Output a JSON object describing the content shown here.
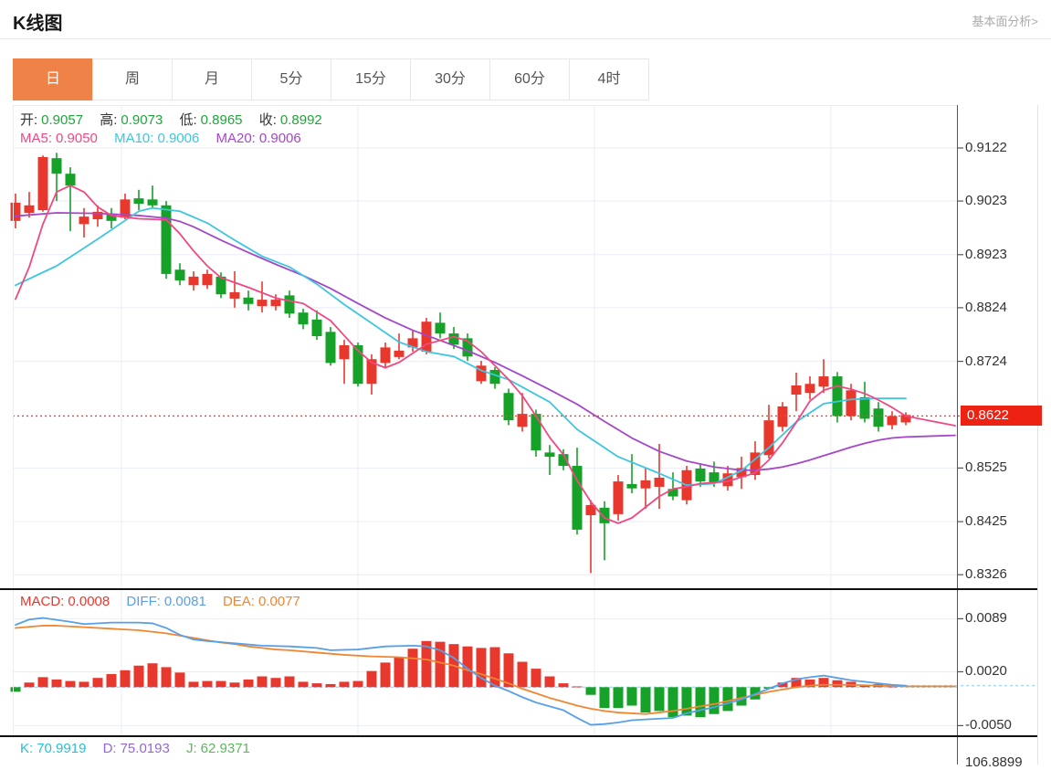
{
  "header": {
    "title": "K线图",
    "link_label": "基本面分析>"
  },
  "tabs": {
    "items": [
      "日",
      "周",
      "月",
      "5分",
      "15分",
      "30分",
      "60分",
      "4时"
    ],
    "selected": "日"
  },
  "main_legend": {
    "open_label": "开:",
    "open_value": "0.9057",
    "high_label": "高:",
    "high_value": "0.9073",
    "low_label": "低:",
    "low_value": "0.8965",
    "close_label": "收:",
    "close_value": "0.8992"
  },
  "ma_legend": {
    "ma5_label": "MA5:",
    "ma5_value": "0.9050",
    "ma10_label": "MA10:",
    "ma10_value": "0.9006",
    "ma20_label": "MA20:",
    "ma20_value": "0.9006"
  },
  "macd_legend": {
    "macd_label": "MACD:",
    "macd_value": "0.0008",
    "diff_label": "DIFF:",
    "diff_value": "0.0081",
    "dea_label": "DEA:",
    "dea_value": "0.0077"
  },
  "kdj_legend": {
    "k_label": "K:",
    "k_value": "70.9919",
    "d_label": "D:",
    "d_value": "75.0193",
    "j_label": "J:",
    "j_value": "62.9371"
  },
  "colors": {
    "tab_selected_bg": "#ef8347",
    "up_red": "#e8382e",
    "down_green": "#16a228",
    "ma5_pink": "#f04883",
    "ma10_cyan": "#3ec6e0",
    "ma20_purple": "#a646c8",
    "diff_blue": "#57a0e8",
    "dea_orange": "#f08632",
    "value_green": "#21a53c",
    "badge_red": "#ee2213",
    "dotted_red": "#f04338",
    "k_cyan": "#25c1d5",
    "d_purple": "#9268d8",
    "j_green": "#5cb85c",
    "grid": "#e9edf6",
    "zero_dash_blue": "#aed6ec"
  },
  "chart_data": {
    "type": "candlestick",
    "panels": [
      "price+MA",
      "MACD",
      "KDJ(partially cut)"
    ],
    "price_axis": {
      "tick_labels": [
        "0.9122",
        "0.9023",
        "0.8923",
        "0.8824",
        "0.8724",
        "0.8525",
        "0.8425",
        "0.8326"
      ],
      "tick_values": [
        0.9122,
        0.9023,
        0.8923,
        0.8824,
        0.8724,
        0.8525,
        0.8425,
        0.8326
      ],
      "current_price_label": "0.8622",
      "current_price": 0.8622
    },
    "macd_axis": {
      "tick_labels": [
        "0.0089",
        "0.0020",
        "-0.0050"
      ],
      "tick_values": [
        0.0089,
        0.002,
        -0.005
      ]
    },
    "kdj_axis_partial_label": "106.8899",
    "candles_ohlc": [
      [
        0.8986,
        0.9037,
        0.8972,
        0.902
      ],
      [
        0.9001,
        0.904,
        0.8992,
        0.9015
      ],
      [
        0.9006,
        0.9108,
        0.9003,
        0.9105
      ],
      [
        0.9103,
        0.9113,
        0.9023,
        0.9074
      ],
      [
        0.9074,
        0.9086,
        0.8967,
        0.9052
      ],
      [
        0.898,
        0.901,
        0.8955,
        0.8994
      ],
      [
        0.8989,
        0.9015,
        0.8975,
        0.9003
      ],
      [
        0.8998,
        0.901,
        0.8972,
        0.8986
      ],
      [
        0.8992,
        0.9037,
        0.8989,
        0.9026
      ],
      [
        0.9028,
        0.9044,
        0.9006,
        0.9018
      ],
      [
        0.9026,
        0.9052,
        0.901,
        0.9015
      ],
      [
        0.9015,
        0.9023,
        0.8878,
        0.8887
      ],
      [
        0.8895,
        0.8907,
        0.8866,
        0.8875
      ],
      [
        0.8866,
        0.8892,
        0.8856,
        0.8882
      ],
      [
        0.8866,
        0.8895,
        0.8859,
        0.8887
      ],
      [
        0.8882,
        0.889,
        0.8842,
        0.8849
      ],
      [
        0.8841,
        0.8892,
        0.8824,
        0.8853
      ],
      [
        0.8843,
        0.8856,
        0.8819,
        0.8831
      ],
      [
        0.8827,
        0.8873,
        0.8815,
        0.8839
      ],
      [
        0.8827,
        0.8849,
        0.8819,
        0.8839
      ],
      [
        0.8847,
        0.8856,
        0.8805,
        0.8813
      ],
      [
        0.8815,
        0.8822,
        0.8784,
        0.8793
      ],
      [
        0.8802,
        0.8819,
        0.8764,
        0.8771
      ],
      [
        0.8779,
        0.8788,
        0.8716,
        0.8721
      ],
      [
        0.8728,
        0.8764,
        0.8682,
        0.8754
      ],
      [
        0.8754,
        0.8759,
        0.8677,
        0.8682
      ],
      [
        0.8682,
        0.8737,
        0.8662,
        0.8728
      ],
      [
        0.8721,
        0.8759,
        0.8711,
        0.875
      ],
      [
        0.8732,
        0.8776,
        0.8728,
        0.8744
      ],
      [
        0.875,
        0.8781,
        0.8742,
        0.8767
      ],
      [
        0.8742,
        0.8805,
        0.8737,
        0.8798
      ],
      [
        0.8796,
        0.8815,
        0.8767,
        0.8776
      ],
      [
        0.8776,
        0.8788,
        0.8747,
        0.8755
      ],
      [
        0.8767,
        0.8776,
        0.8725,
        0.8733
      ],
      [
        0.8687,
        0.8725,
        0.8682,
        0.8716
      ],
      [
        0.8708,
        0.8713,
        0.8673,
        0.8682
      ],
      [
        0.8665,
        0.8673,
        0.8605,
        0.8614
      ],
      [
        0.8602,
        0.8665,
        0.8593,
        0.8626
      ],
      [
        0.8626,
        0.8634,
        0.8546,
        0.8558
      ],
      [
        0.8554,
        0.8568,
        0.8512,
        0.8546
      ],
      [
        0.8551,
        0.856,
        0.8521,
        0.8529
      ],
      [
        0.8529,
        0.8563,
        0.8401,
        0.841
      ],
      [
        0.8437,
        0.8465,
        0.8329,
        0.8456
      ],
      [
        0.8451,
        0.8463,
        0.8353,
        0.8422
      ],
      [
        0.8439,
        0.8512,
        0.8427,
        0.85
      ],
      [
        0.8495,
        0.8551,
        0.8478,
        0.8487
      ],
      [
        0.8487,
        0.8526,
        0.8449,
        0.8502
      ],
      [
        0.849,
        0.857,
        0.8449,
        0.8507
      ],
      [
        0.8486,
        0.8517,
        0.8465,
        0.8472
      ],
      [
        0.8465,
        0.8529,
        0.8457,
        0.8521
      ],
      [
        0.8524,
        0.8532,
        0.849,
        0.85
      ],
      [
        0.8517,
        0.8537,
        0.849,
        0.8498
      ],
      [
        0.8491,
        0.8529,
        0.8483,
        0.8515
      ],
      [
        0.8508,
        0.8546,
        0.8486,
        0.8525
      ],
      [
        0.8512,
        0.8575,
        0.8503,
        0.8554
      ],
      [
        0.8549,
        0.8643,
        0.8543,
        0.8614
      ],
      [
        0.8602,
        0.8648,
        0.8593,
        0.864
      ],
      [
        0.8662,
        0.8703,
        0.8631,
        0.8679
      ],
      [
        0.8665,
        0.8696,
        0.8653,
        0.8682
      ],
      [
        0.8677,
        0.8728,
        0.8665,
        0.8696
      ],
      [
        0.8696,
        0.8704,
        0.861,
        0.8622
      ],
      [
        0.8622,
        0.8682,
        0.8614,
        0.867
      ],
      [
        0.8657,
        0.8686,
        0.861,
        0.8617
      ],
      [
        0.8636,
        0.8648,
        0.8593,
        0.8602
      ],
      [
        0.8605,
        0.8631,
        0.8597,
        0.8622
      ],
      [
        0.861,
        0.8629,
        0.8605,
        0.8624
      ]
    ],
    "ma5_line": [
      [
        0,
        0.884
      ],
      [
        1,
        0.89
      ],
      [
        2,
        0.898
      ],
      [
        3,
        0.904
      ],
      [
        4,
        0.9052
      ],
      [
        5,
        0.904
      ],
      [
        6,
        0.9012
      ],
      [
        7,
        0.8996
      ],
      [
        9,
        0.899
      ],
      [
        11,
        0.8988
      ],
      [
        12,
        0.8962
      ],
      [
        13,
        0.893
      ],
      [
        14,
        0.8902
      ],
      [
        15,
        0.888
      ],
      [
        17,
        0.8862
      ],
      [
        19,
        0.8842
      ],
      [
        21,
        0.8832
      ],
      [
        23,
        0.88
      ],
      [
        24,
        0.8772
      ],
      [
        25,
        0.8744
      ],
      [
        26,
        0.8722
      ],
      [
        27,
        0.8712
      ],
      [
        28,
        0.8722
      ],
      [
        30,
        0.8756
      ],
      [
        32,
        0.877
      ],
      [
        33,
        0.8762
      ],
      [
        34,
        0.8742
      ],
      [
        35,
        0.8716
      ],
      [
        36,
        0.869
      ],
      [
        37,
        0.866
      ],
      [
        38,
        0.8622
      ],
      [
        39,
        0.8582
      ],
      [
        40,
        0.855
      ],
      [
        41,
        0.8502
      ],
      [
        42,
        0.8462
      ],
      [
        43,
        0.8432
      ],
      [
        44,
        0.8422
      ],
      [
        45,
        0.8432
      ],
      [
        46,
        0.8452
      ],
      [
        47,
        0.8472
      ],
      [
        48,
        0.8486
      ],
      [
        49,
        0.849
      ],
      [
        50,
        0.8496
      ],
      [
        52,
        0.85
      ],
      [
        54,
        0.8516
      ],
      [
        55,
        0.854
      ],
      [
        56,
        0.8572
      ],
      [
        57,
        0.861
      ],
      [
        58,
        0.865
      ],
      [
        59,
        0.867
      ],
      [
        60,
        0.8678
      ],
      [
        61,
        0.8672
      ],
      [
        62,
        0.8664
      ],
      [
        63,
        0.8652
      ],
      [
        64,
        0.8638
      ],
      [
        65,
        0.8622
      ],
      [
        68.6,
        0.8604
      ]
    ],
    "ma10_line": [
      [
        0,
        0.8866
      ],
      [
        3,
        0.8902
      ],
      [
        6,
        0.8952
      ],
      [
        9,
        0.9004
      ],
      [
        10,
        0.901
      ],
      [
        12,
        0.9004
      ],
      [
        14,
        0.8982
      ],
      [
        16,
        0.895
      ],
      [
        18,
        0.892
      ],
      [
        20,
        0.89
      ],
      [
        22,
        0.8868
      ],
      [
        24,
        0.883
      ],
      [
        26,
        0.8795
      ],
      [
        28,
        0.876
      ],
      [
        30,
        0.8742
      ],
      [
        32,
        0.8733
      ],
      [
        34,
        0.8707
      ],
      [
        36,
        0.869
      ],
      [
        39,
        0.8648
      ],
      [
        41,
        0.8597
      ],
      [
        44,
        0.8546
      ],
      [
        47,
        0.8515
      ],
      [
        49,
        0.8493
      ],
      [
        51,
        0.8496
      ],
      [
        53,
        0.852
      ],
      [
        55,
        0.8563
      ],
      [
        57,
        0.8611
      ],
      [
        59,
        0.8645
      ],
      [
        61,
        0.8653
      ],
      [
        63,
        0.8655
      ],
      [
        65,
        0.8655
      ]
    ],
    "ma20_line": [
      [
        0,
        0.8995
      ],
      [
        3,
        0.9001
      ],
      [
        6,
        0.9
      ],
      [
        9,
        0.8996
      ],
      [
        11,
        0.8991
      ],
      [
        12,
        0.8985
      ],
      [
        13,
        0.8975
      ],
      [
        15,
        0.895
      ],
      [
        17,
        0.8927
      ],
      [
        19,
        0.8905
      ],
      [
        21,
        0.8884
      ],
      [
        23,
        0.886
      ],
      [
        25,
        0.8832
      ],
      [
        27,
        0.8805
      ],
      [
        29,
        0.8782
      ],
      [
        31,
        0.8763
      ],
      [
        33,
        0.8744
      ],
      [
        35,
        0.8722
      ],
      [
        37,
        0.8697
      ],
      [
        39,
        0.8671
      ],
      [
        41,
        0.8644
      ],
      [
        43,
        0.8612
      ],
      [
        45,
        0.8581
      ],
      [
        47,
        0.8556
      ],
      [
        49,
        0.8538
      ],
      [
        51,
        0.8527
      ],
      [
        53,
        0.8521
      ],
      [
        54,
        0.8521
      ],
      [
        55,
        0.8523
      ],
      [
        56,
        0.8527
      ],
      [
        57,
        0.8533
      ],
      [
        58,
        0.854
      ],
      [
        59,
        0.8548
      ],
      [
        60,
        0.8556
      ],
      [
        61,
        0.8564
      ],
      [
        62,
        0.8571
      ],
      [
        63,
        0.8577
      ],
      [
        64,
        0.8581
      ],
      [
        65,
        0.8583
      ],
      [
        68.6,
        0.8586
      ]
    ],
    "macd_hist": [
      -0.0006,
      0.0006,
      0.0013,
      0.001,
      0.0008,
      0.0007,
      0.0012,
      0.0017,
      0.0022,
      0.0028,
      0.0031,
      0.0026,
      0.0019,
      0.0007,
      0.0008,
      0.0008,
      0.0006,
      0.001,
      0.0014,
      0.0012,
      0.0014,
      0.0007,
      0.0005,
      0.0004,
      0.0007,
      0.0008,
      0.0021,
      0.0032,
      0.0039,
      0.005,
      0.006,
      0.0059,
      0.0056,
      0.0053,
      0.0051,
      0.0052,
      0.0044,
      0.0033,
      0.0024,
      0.0014,
      0.0005,
      0.0001,
      -0.001,
      -0.0027,
      -0.0027,
      -0.0024,
      -0.0033,
      -0.0031,
      -0.0039,
      -0.0037,
      -0.0039,
      -0.0035,
      -0.0031,
      -0.0024,
      -0.0016,
      -0.0002,
      0.0006,
      0.0012,
      0.001,
      0.0012,
      0.0009,
      0.0007,
      0.0002,
      0.0004,
      0.0001,
      0.0
    ],
    "diff_line": [
      [
        0,
        0.0081
      ],
      [
        1,
        0.0088
      ],
      [
        2,
        0.009
      ],
      [
        4,
        0.0085
      ],
      [
        5,
        0.0082
      ],
      [
        7,
        0.0084
      ],
      [
        9,
        0.0084
      ],
      [
        10,
        0.0083
      ],
      [
        11,
        0.0077
      ],
      [
        12,
        0.0068
      ],
      [
        13,
        0.0062
      ],
      [
        14,
        0.006
      ],
      [
        16,
        0.0057
      ],
      [
        18,
        0.0054
      ],
      [
        20,
        0.0053
      ],
      [
        22,
        0.0051
      ],
      [
        23,
        0.0048
      ],
      [
        25,
        0.0049
      ],
      [
        27,
        0.0053
      ],
      [
        29,
        0.0054
      ],
      [
        30,
        0.0053
      ],
      [
        31,
        0.0048
      ],
      [
        32,
        0.0038
      ],
      [
        33,
        0.0024
      ],
      [
        34,
        0.0012
      ],
      [
        35,
        0.0002
      ],
      [
        36,
        -0.0005
      ],
      [
        37,
        -0.0013
      ],
      [
        38,
        -0.002
      ],
      [
        40,
        -0.003
      ],
      [
        41,
        -0.004
      ],
      [
        42,
        -0.0049
      ],
      [
        43,
        -0.0048
      ],
      [
        44,
        -0.0046
      ],
      [
        45,
        -0.0043
      ],
      [
        46,
        -0.0042
      ],
      [
        48,
        -0.004
      ],
      [
        49,
        -0.0034
      ],
      [
        50,
        -0.003
      ],
      [
        51,
        -0.0026
      ],
      [
        52,
        -0.0021
      ],
      [
        53,
        -0.0016
      ],
      [
        54,
        -0.0009
      ],
      [
        55,
        -0.0002
      ],
      [
        56,
        0.0005
      ],
      [
        57,
        0.001
      ],
      [
        58,
        0.0013
      ],
      [
        59,
        0.0015
      ],
      [
        60,
        0.0012
      ],
      [
        61,
        0.0009
      ],
      [
        62,
        0.0007
      ],
      [
        63,
        0.0005
      ],
      [
        64,
        0.0003
      ],
      [
        65,
        0.0002
      ]
    ],
    "dea_line": [
      [
        0,
        0.0077
      ],
      [
        2,
        0.008
      ],
      [
        3,
        0.008
      ],
      [
        5,
        0.0078
      ],
      [
        7,
        0.0076
      ],
      [
        9,
        0.0074
      ],
      [
        11,
        0.007
      ],
      [
        12,
        0.0067
      ],
      [
        13,
        0.0064
      ],
      [
        14,
        0.0061
      ],
      [
        15,
        0.0058
      ],
      [
        16,
        0.0056
      ],
      [
        17,
        0.0053
      ],
      [
        18,
        0.0051
      ],
      [
        19,
        0.0049
      ],
      [
        20,
        0.0048
      ],
      [
        22,
        0.0045
      ],
      [
        24,
        0.0042
      ],
      [
        26,
        0.004
      ],
      [
        28,
        0.0039
      ],
      [
        30,
        0.0036
      ],
      [
        31,
        0.0032
      ],
      [
        32,
        0.0028
      ],
      [
        33,
        0.0022
      ],
      [
        34,
        0.0017
      ],
      [
        35,
        0.0011
      ],
      [
        36,
        0.0005
      ],
      [
        37,
        -0.0002
      ],
      [
        38,
        -0.0008
      ],
      [
        39,
        -0.0014
      ],
      [
        40,
        -0.0019
      ],
      [
        41,
        -0.0024
      ],
      [
        42,
        -0.0028
      ],
      [
        43,
        -0.0031
      ],
      [
        44,
        -0.0033
      ],
      [
        45,
        -0.0034
      ],
      [
        46,
        -0.0035
      ],
      [
        47,
        -0.0033
      ],
      [
        48,
        -0.0031
      ],
      [
        49,
        -0.0028
      ],
      [
        50,
        -0.0025
      ],
      [
        51,
        -0.0022
      ],
      [
        52,
        -0.0018
      ],
      [
        53,
        -0.0014
      ],
      [
        54,
        -0.001
      ],
      [
        55,
        -0.0006
      ],
      [
        56,
        -0.0003
      ],
      [
        57,
        0.0
      ],
      [
        58,
        0.0002
      ],
      [
        59,
        0.0003
      ],
      [
        61,
        0.0003
      ],
      [
        63,
        0.0002
      ],
      [
        65,
        0.0001
      ],
      [
        68.6,
        0.0001
      ]
    ],
    "layout_hints": {
      "grid": true,
      "legend_position": "top-left of each panel",
      "price_ylim": [
        0.8326,
        0.9122
      ],
      "macd_ylim": [
        -0.005,
        0.0089
      ]
    }
  }
}
